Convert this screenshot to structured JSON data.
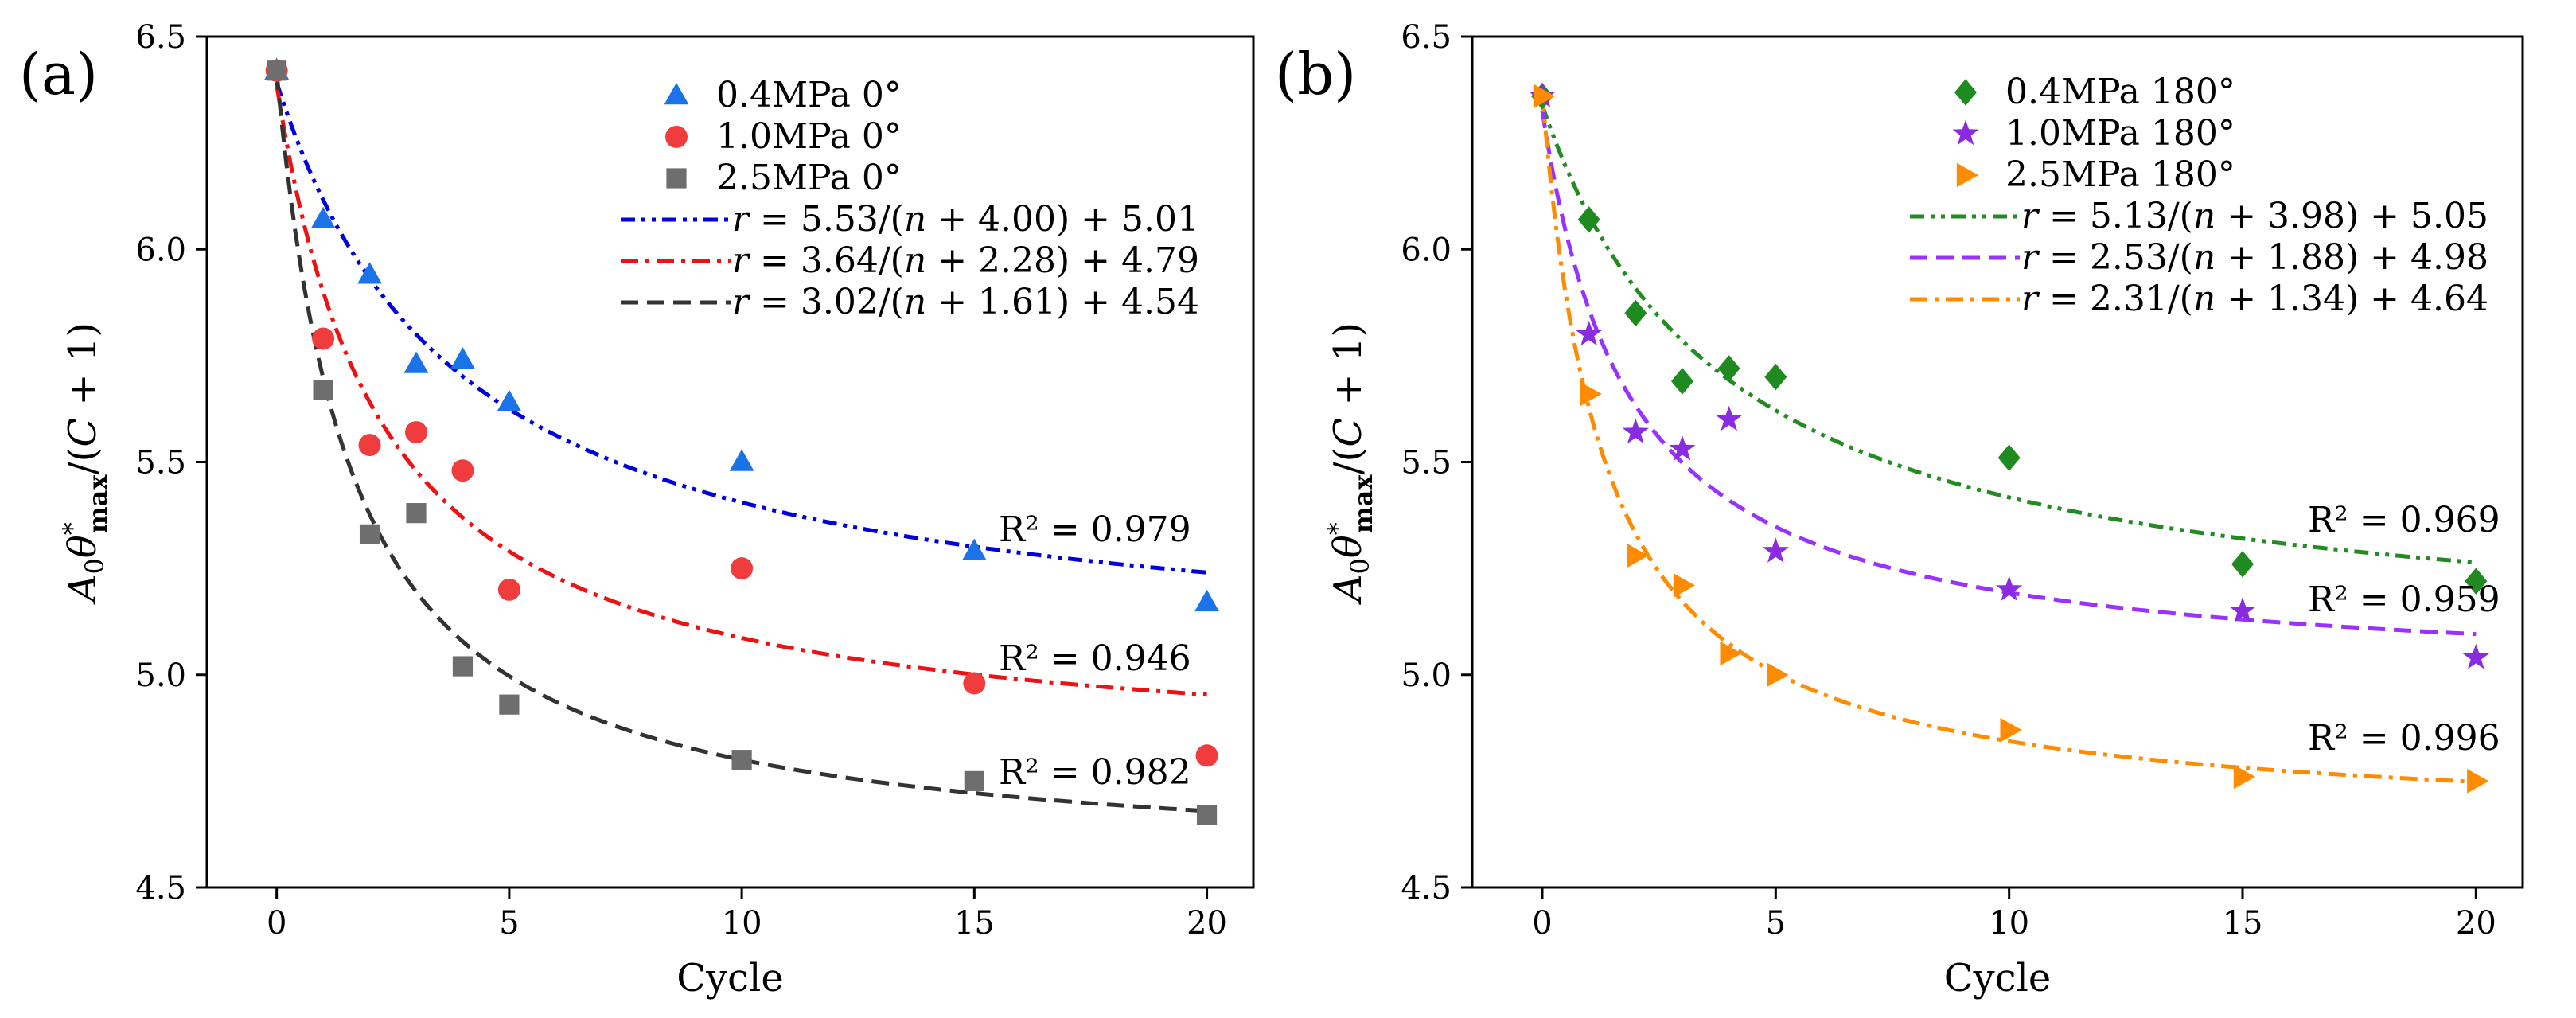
{
  "chart_data": [
    {
      "type": "scatter",
      "panel_label": "(a)",
      "xlabel": "Cycle",
      "ylabel": "A0θ*max/(C+1)",
      "xlim": [
        -1.5,
        21
      ],
      "ylim": [
        4.5,
        6.5
      ],
      "xticks": [
        0,
        5,
        10,
        15,
        20
      ],
      "yticks": [
        4.5,
        5.0,
        5.5,
        6.0,
        6.5
      ],
      "ytick_labels": [
        "4.5",
        "5.0",
        "5.5",
        "6.0",
        "6.5"
      ],
      "legend_position": "top-right",
      "series": [
        {
          "name": "0.4MPa 0°",
          "marker": "triangle",
          "color": "#1a73e8",
          "x": [
            0,
            1,
            2,
            3,
            4,
            5,
            10,
            15,
            20
          ],
          "y": [
            6.42,
            6.07,
            5.94,
            5.73,
            5.74,
            5.64,
            5.5,
            5.29,
            5.17
          ],
          "fit": {
            "a": 5.53,
            "b": 4.0,
            "c": 5.01,
            "dash": "dashdotdot",
            "color": "#0000dd",
            "label_parts": [
              "5.53",
              "4.00",
              "5.01"
            ]
          },
          "r2_label": "R² = 0.979"
        },
        {
          "name": "1.0MPa 0°",
          "marker": "circle",
          "color": "#f03c3c",
          "x": [
            0,
            1,
            2,
            3,
            4,
            5,
            10,
            15,
            20
          ],
          "y": [
            6.42,
            5.79,
            5.54,
            5.57,
            5.48,
            5.2,
            5.25,
            4.98,
            4.81
          ],
          "fit": {
            "a": 3.64,
            "b": 2.28,
            "c": 4.79,
            "dash": "dashdot",
            "color": "#ee1111",
            "label_parts": [
              "3.64",
              "2.28",
              "4.79"
            ]
          },
          "r2_label": "R² = 0.946"
        },
        {
          "name": "2.5MPa 0°",
          "marker": "square",
          "color": "#6e6e6e",
          "x": [
            0,
            1,
            2,
            3,
            4,
            5,
            10,
            15,
            20
          ],
          "y": [
            6.42,
            5.67,
            5.33,
            5.38,
            5.02,
            4.93,
            4.8,
            4.75,
            4.67
          ],
          "fit": {
            "a": 3.02,
            "b": 1.61,
            "c": 4.54,
            "dash": "dash",
            "color": "#333333",
            "label_parts": [
              "3.02",
              "1.61",
              "4.54"
            ]
          },
          "r2_label": "R² = 0.982"
        }
      ]
    },
    {
      "type": "scatter",
      "panel_label": "(b)",
      "xlabel": "Cycle",
      "ylabel": "A0θ*max/(C+1)",
      "xlim": [
        -1.5,
        21
      ],
      "ylim": [
        4.5,
        6.5
      ],
      "xticks": [
        0,
        5,
        10,
        15,
        20
      ],
      "yticks": [
        4.5,
        5.0,
        5.5,
        6.0,
        6.5
      ],
      "ytick_labels": [
        "4.5",
        "5.0",
        "5.5",
        "6.0",
        "6.5"
      ],
      "legend_position": "top-right",
      "series": [
        {
          "name": "0.4MPa 180°",
          "marker": "diamond",
          "color": "#1f8a1f",
          "x": [
            0,
            1,
            2,
            3,
            4,
            5,
            10,
            15,
            20
          ],
          "y": [
            6.36,
            6.07,
            5.85,
            5.69,
            5.72,
            5.7,
            5.51,
            5.26,
            5.22
          ],
          "fit": {
            "a": 5.13,
            "b": 3.98,
            "c": 5.05,
            "dash": "dashdotdot",
            "color": "#228b22",
            "label_parts": [
              "5.13",
              "3.98",
              "5.05"
            ]
          },
          "r2_label": "R² = 0.969"
        },
        {
          "name": "1.0MPa 180°",
          "marker": "star",
          "color": "#8a2be2",
          "x": [
            0,
            1,
            2,
            3,
            4,
            5,
            10,
            15,
            20
          ],
          "y": [
            6.36,
            5.8,
            5.57,
            5.53,
            5.6,
            5.29,
            5.2,
            5.15,
            5.04
          ],
          "fit": {
            "a": 2.53,
            "b": 1.88,
            "c": 4.98,
            "dash": "dash",
            "color": "#9932ff",
            "label_parts": [
              "2.53",
              "1.88",
              "4.98"
            ]
          },
          "r2_label": "R² = 0.959"
        },
        {
          "name": "2.5MPa 180°",
          "marker": "triangle-right",
          "color": "#ff8c00",
          "x": [
            0,
            1,
            2,
            3,
            4,
            5,
            10,
            15,
            20
          ],
          "y": [
            6.36,
            5.66,
            5.28,
            5.21,
            5.05,
            5.0,
            4.87,
            4.76,
            4.75
          ],
          "fit": {
            "a": 2.31,
            "b": 1.34,
            "c": 4.64,
            "dash": "dashdot",
            "color": "#ff8c00",
            "label_parts": [
              "2.31",
              "1.34",
              "4.64"
            ]
          },
          "r2_label": "R² = 0.996"
        }
      ]
    }
  ]
}
